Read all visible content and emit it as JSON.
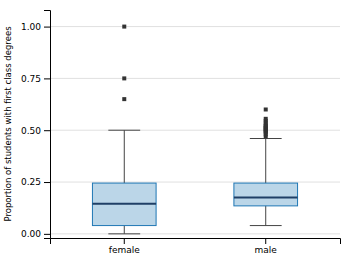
{
  "chart_data": {
    "type": "box",
    "categories": [
      "female",
      "male"
    ],
    "boxes": [
      {
        "q1": 0.04,
        "median": 0.145,
        "q3": 0.245,
        "whisker_low": 0.0,
        "whisker_high": 0.5,
        "outliers": [
          0.65,
          0.75,
          1.0
        ]
      },
      {
        "q1": 0.135,
        "median": 0.175,
        "q3": 0.245,
        "whisker_low": 0.04,
        "whisker_high": 0.46,
        "outliers": [
          0.47,
          0.48,
          0.49,
          0.495,
          0.5,
          0.505,
          0.51,
          0.515,
          0.52,
          0.525,
          0.535,
          0.545,
          0.555,
          0.6
        ]
      }
    ],
    "ylabel": "Proportion of students with first class degrees",
    "ylim": [
      -0.02,
      1.08
    ],
    "yticks": [
      {
        "value": 0.0,
        "label": "0.00"
      },
      0.25,
      {
        "value": 0.5,
        "label": "0.50"
      },
      0.75,
      {
        "value": 1.0,
        "label": "1.00"
      }
    ],
    "grid": true
  }
}
